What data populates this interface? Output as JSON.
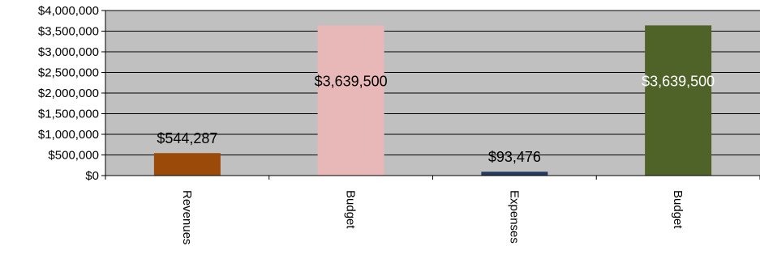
{
  "chart_data": {
    "type": "bar",
    "title": "",
    "xlabel": "",
    "ylabel": "",
    "categories": [
      "Revenues",
      "Budget",
      "Expenses",
      "Budget"
    ],
    "values": [
      544287,
      3639500,
      93476,
      3639500
    ],
    "data_labels": [
      "$544,287",
      "$3,639,500",
      "$93,476",
      "$3,639,500"
    ],
    "bar_colors": [
      "#9c4a0a",
      "#e8b8b8",
      "#243b5e",
      "#4f6228"
    ],
    "label_colors": [
      "#000000",
      "#000000",
      "#000000",
      "#ffffff"
    ],
    "ylim": [
      0,
      4000000
    ],
    "yticks": [
      0,
      500000,
      1000000,
      1500000,
      2000000,
      2500000,
      3000000,
      3500000,
      4000000
    ],
    "ytick_labels": [
      "$0",
      "$500,000",
      "$1,000,000",
      "$1,500,000",
      "$2,000,000",
      "$2,500,000",
      "$3,000,000",
      "$3,500,000",
      "$4,000,000"
    ],
    "grid": true,
    "plot_background": "#c0c0c0",
    "legend": "none"
  }
}
